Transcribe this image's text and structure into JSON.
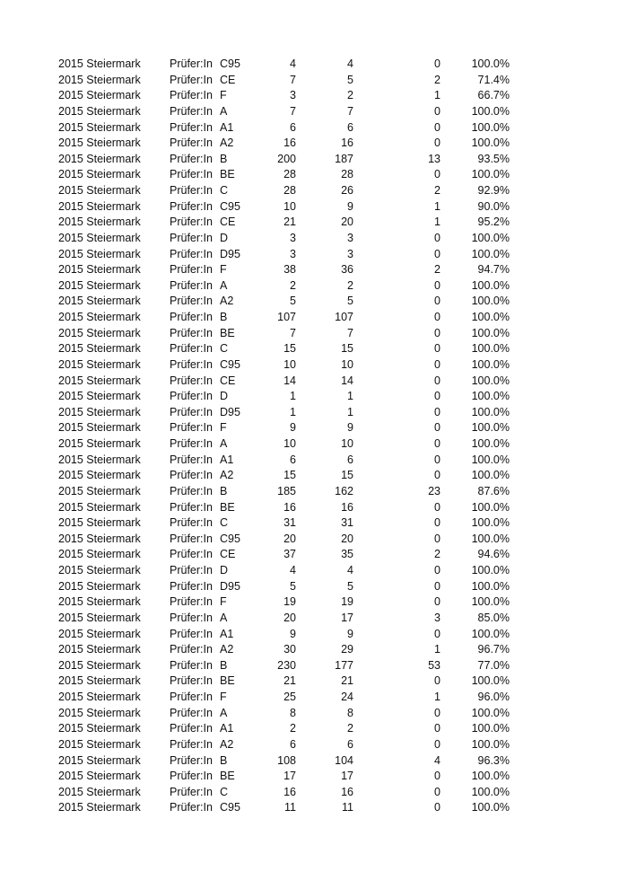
{
  "rows": [
    [
      "2015 Steiermark",
      "Prüfer:In",
      "C95",
      "4",
      "4",
      "0",
      "100.0%"
    ],
    [
      "2015 Steiermark",
      "Prüfer:In",
      "CE",
      "7",
      "5",
      "2",
      "71.4%"
    ],
    [
      "2015 Steiermark",
      "Prüfer:In",
      "F",
      "3",
      "2",
      "1",
      "66.7%"
    ],
    [
      "2015 Steiermark",
      "Prüfer:In",
      "A",
      "7",
      "7",
      "0",
      "100.0%"
    ],
    [
      "2015 Steiermark",
      "Prüfer:In",
      "A1",
      "6",
      "6",
      "0",
      "100.0%"
    ],
    [
      "2015 Steiermark",
      "Prüfer:In",
      "A2",
      "16",
      "16",
      "0",
      "100.0%"
    ],
    [
      "2015 Steiermark",
      "Prüfer:In",
      "B",
      "200",
      "187",
      "13",
      "93.5%"
    ],
    [
      "2015 Steiermark",
      "Prüfer:In",
      "BE",
      "28",
      "28",
      "0",
      "100.0%"
    ],
    [
      "2015 Steiermark",
      "Prüfer:In",
      "C",
      "28",
      "26",
      "2",
      "92.9%"
    ],
    [
      "2015 Steiermark",
      "Prüfer:In",
      "C95",
      "10",
      "9",
      "1",
      "90.0%"
    ],
    [
      "2015 Steiermark",
      "Prüfer:In",
      "CE",
      "21",
      "20",
      "1",
      "95.2%"
    ],
    [
      "2015 Steiermark",
      "Prüfer:In",
      "D",
      "3",
      "3",
      "0",
      "100.0%"
    ],
    [
      "2015 Steiermark",
      "Prüfer:In",
      "D95",
      "3",
      "3",
      "0",
      "100.0%"
    ],
    [
      "2015 Steiermark",
      "Prüfer:In",
      "F",
      "38",
      "36",
      "2",
      "94.7%"
    ],
    [
      "2015 Steiermark",
      "Prüfer:In",
      "A",
      "2",
      "2",
      "0",
      "100.0%"
    ],
    [
      "2015 Steiermark",
      "Prüfer:In",
      "A2",
      "5",
      "5",
      "0",
      "100.0%"
    ],
    [
      "2015 Steiermark",
      "Prüfer:In",
      "B",
      "107",
      "107",
      "0",
      "100.0%"
    ],
    [
      "2015 Steiermark",
      "Prüfer:In",
      "BE",
      "7",
      "7",
      "0",
      "100.0%"
    ],
    [
      "2015 Steiermark",
      "Prüfer:In",
      "C",
      "15",
      "15",
      "0",
      "100.0%"
    ],
    [
      "2015 Steiermark",
      "Prüfer:In",
      "C95",
      "10",
      "10",
      "0",
      "100.0%"
    ],
    [
      "2015 Steiermark",
      "Prüfer:In",
      "CE",
      "14",
      "14",
      "0",
      "100.0%"
    ],
    [
      "2015 Steiermark",
      "Prüfer:In",
      "D",
      "1",
      "1",
      "0",
      "100.0%"
    ],
    [
      "2015 Steiermark",
      "Prüfer:In",
      "D95",
      "1",
      "1",
      "0",
      "100.0%"
    ],
    [
      "2015 Steiermark",
      "Prüfer:In",
      "F",
      "9",
      "9",
      "0",
      "100.0%"
    ],
    [
      "2015 Steiermark",
      "Prüfer:In",
      "A",
      "10",
      "10",
      "0",
      "100.0%"
    ],
    [
      "2015 Steiermark",
      "Prüfer:In",
      "A1",
      "6",
      "6",
      "0",
      "100.0%"
    ],
    [
      "2015 Steiermark",
      "Prüfer:In",
      "A2",
      "15",
      "15",
      "0",
      "100.0%"
    ],
    [
      "2015 Steiermark",
      "Prüfer:In",
      "B",
      "185",
      "162",
      "23",
      "87.6%"
    ],
    [
      "2015 Steiermark",
      "Prüfer:In",
      "BE",
      "16",
      "16",
      "0",
      "100.0%"
    ],
    [
      "2015 Steiermark",
      "Prüfer:In",
      "C",
      "31",
      "31",
      "0",
      "100.0%"
    ],
    [
      "2015 Steiermark",
      "Prüfer:In",
      "C95",
      "20",
      "20",
      "0",
      "100.0%"
    ],
    [
      "2015 Steiermark",
      "Prüfer:In",
      "CE",
      "37",
      "35",
      "2",
      "94.6%"
    ],
    [
      "2015 Steiermark",
      "Prüfer:In",
      "D",
      "4",
      "4",
      "0",
      "100.0%"
    ],
    [
      "2015 Steiermark",
      "Prüfer:In",
      "D95",
      "5",
      "5",
      "0",
      "100.0%"
    ],
    [
      "2015 Steiermark",
      "Prüfer:In",
      "F",
      "19",
      "19",
      "0",
      "100.0%"
    ],
    [
      "2015 Steiermark",
      "Prüfer:In",
      "A",
      "20",
      "17",
      "3",
      "85.0%"
    ],
    [
      "2015 Steiermark",
      "Prüfer:In",
      "A1",
      "9",
      "9",
      "0",
      "100.0%"
    ],
    [
      "2015 Steiermark",
      "Prüfer:In",
      "A2",
      "30",
      "29",
      "1",
      "96.7%"
    ],
    [
      "2015 Steiermark",
      "Prüfer:In",
      "B",
      "230",
      "177",
      "53",
      "77.0%"
    ],
    [
      "2015 Steiermark",
      "Prüfer:In",
      "BE",
      "21",
      "21",
      "0",
      "100.0%"
    ],
    [
      "2015 Steiermark",
      "Prüfer:In",
      "F",
      "25",
      "24",
      "1",
      "96.0%"
    ],
    [
      "2015 Steiermark",
      "Prüfer:In",
      "A",
      "8",
      "8",
      "0",
      "100.0%"
    ],
    [
      "2015 Steiermark",
      "Prüfer:In",
      "A1",
      "2",
      "2",
      "0",
      "100.0%"
    ],
    [
      "2015 Steiermark",
      "Prüfer:In",
      "A2",
      "6",
      "6",
      "0",
      "100.0%"
    ],
    [
      "2015 Steiermark",
      "Prüfer:In",
      "B",
      "108",
      "104",
      "4",
      "96.3%"
    ],
    [
      "2015 Steiermark",
      "Prüfer:In",
      "BE",
      "17",
      "17",
      "0",
      "100.0%"
    ],
    [
      "2015 Steiermark",
      "Prüfer:In",
      "C",
      "16",
      "16",
      "0",
      "100.0%"
    ],
    [
      "2015 Steiermark",
      "Prüfer:In",
      "C95",
      "11",
      "11",
      "0",
      "100.0%"
    ]
  ]
}
